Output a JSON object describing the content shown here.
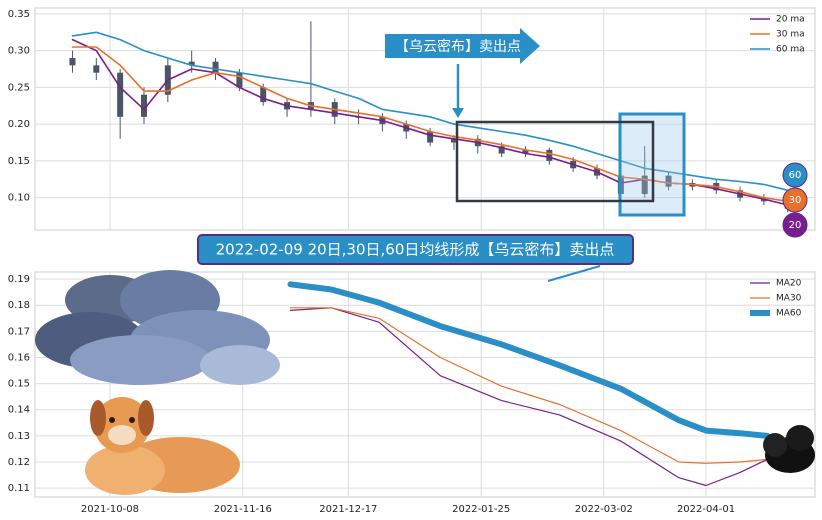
{
  "chart_data": [
    {
      "type": "candlestick",
      "x": [
        "2021-09-27",
        "2021-10-04",
        "2021-10-11",
        "2021-10-18",
        "2021-10-25",
        "2021-11-01",
        "2021-11-08",
        "2021-11-15",
        "2021-11-22",
        "2021-11-29",
        "2021-12-06",
        "2021-12-13",
        "2021-12-20",
        "2021-12-27",
        "2022-01-03",
        "2022-01-10",
        "2022-01-17",
        "2022-01-24",
        "2022-01-31",
        "2022-02-07",
        "2022-02-14",
        "2022-02-21",
        "2022-02-28",
        "2022-03-07",
        "2022-03-14",
        "2022-03-21",
        "2022-03-28",
        "2022-04-04",
        "2022-04-11",
        "2022-04-18",
        "2022-04-25"
      ],
      "open": [
        0.29,
        0.28,
        0.27,
        0.21,
        0.24,
        0.28,
        0.285,
        0.27,
        0.25,
        0.23,
        0.22,
        0.23,
        0.21,
        0.21,
        0.2,
        0.19,
        0.175,
        0.18,
        0.17,
        0.16,
        0.165,
        0.15,
        0.14,
        0.13,
        0.105,
        0.13,
        0.115,
        0.12,
        0.11,
        0.1,
        0.095
      ],
      "high": [
        0.3,
        0.29,
        0.275,
        0.25,
        0.29,
        0.3,
        0.29,
        0.275,
        0.255,
        0.235,
        0.34,
        0.235,
        0.22,
        0.215,
        0.205,
        0.195,
        0.185,
        0.185,
        0.175,
        0.17,
        0.168,
        0.155,
        0.145,
        0.135,
        0.17,
        0.135,
        0.125,
        0.125,
        0.115,
        0.105,
        0.1
      ],
      "low": [
        0.27,
        0.26,
        0.18,
        0.2,
        0.23,
        0.27,
        0.26,
        0.245,
        0.225,
        0.21,
        0.21,
        0.2,
        0.2,
        0.19,
        0.18,
        0.17,
        0.165,
        0.16,
        0.155,
        0.155,
        0.145,
        0.135,
        0.125,
        0.1,
        0.1,
        0.11,
        0.11,
        0.105,
        0.095,
        0.09,
        0.08
      ],
      "close": [
        0.28,
        0.27,
        0.21,
        0.24,
        0.28,
        0.285,
        0.27,
        0.25,
        0.23,
        0.22,
        0.23,
        0.21,
        0.21,
        0.2,
        0.19,
        0.175,
        0.18,
        0.17,
        0.16,
        0.165,
        0.15,
        0.14,
        0.13,
        0.105,
        0.13,
        0.115,
        0.12,
        0.11,
        0.1,
        0.095,
        0.085
      ],
      "candle_color": "#4a5566",
      "series": [
        {
          "name": "20 ma",
          "color": "#7a1e8e",
          "values": [
            0.315,
            0.3,
            0.25,
            0.22,
            0.26,
            0.275,
            0.27,
            0.25,
            0.235,
            0.225,
            0.22,
            0.215,
            0.21,
            0.205,
            0.195,
            0.185,
            0.18,
            0.175,
            0.168,
            0.16,
            0.155,
            0.145,
            0.135,
            0.12,
            0.125,
            0.12,
            0.118,
            0.112,
            0.105,
            0.098,
            0.09
          ]
        },
        {
          "name": "30 ma",
          "color": "#e8702a",
          "values": [
            0.305,
            0.305,
            0.28,
            0.245,
            0.245,
            0.26,
            0.27,
            0.265,
            0.25,
            0.235,
            0.225,
            0.22,
            0.215,
            0.21,
            0.2,
            0.19,
            0.183,
            0.178,
            0.172,
            0.165,
            0.16,
            0.152,
            0.14,
            0.128,
            0.125,
            0.12,
            0.118,
            0.115,
            0.108,
            0.1,
            0.095
          ]
        },
        {
          "name": "60 ma",
          "color": "#2a8fc7",
          "values": [
            0.32,
            0.325,
            0.315,
            0.3,
            0.29,
            0.28,
            0.275,
            0.27,
            0.265,
            0.26,
            0.255,
            0.245,
            0.235,
            0.22,
            0.215,
            0.21,
            0.2,
            0.195,
            0.19,
            0.185,
            0.178,
            0.17,
            0.16,
            0.15,
            0.14,
            0.135,
            0.13,
            0.125,
            0.122,
            0.118,
            0.11
          ]
        }
      ],
      "xlim": [
        "2021-09-16",
        "2022-05-03"
      ],
      "xticks": [
        "2021-10-08",
        "2021-11-16",
        "2021-12-17",
        "2022-01-25",
        "2022-03-02",
        "2022-04-01"
      ],
      "ylim": [
        0.056,
        0.358
      ],
      "yticks": [
        {
          "value": 0.1,
          "label": "0.10"
        },
        0.15,
        {
          "value": 0.2,
          "label": "0.20"
        },
        0.25,
        {
          "value": 0.3,
          "label": "0.30"
        },
        0.35
      ],
      "grid": true,
      "legend": "upper right",
      "annotation": "【乌云密布】卖出点",
      "badges": [
        "60",
        "30",
        "20"
      ]
    },
    {
      "type": "line",
      "x": [
        "2021-11-30",
        "2021-12-12",
        "2021-12-26",
        "2022-01-13",
        "2022-01-31",
        "2022-02-17",
        "2022-03-07",
        "2022-03-24",
        "2022-04-01",
        "2022-04-11",
        "2022-04-19"
      ],
      "series": [
        {
          "name": "MA20",
          "color": "#7a1e8e",
          "width": 1.2,
          "values": [
            0.178,
            0.179,
            0.1735,
            0.153,
            0.1435,
            0.138,
            0.128,
            0.114,
            0.111,
            0.116,
            0.121
          ]
        },
        {
          "name": "MA30",
          "color": "#e8702a",
          "width": 1.2,
          "values": [
            0.179,
            0.179,
            0.175,
            0.16,
            0.149,
            0.142,
            0.132,
            0.12,
            0.1195,
            0.12,
            0.121
          ]
        },
        {
          "name": "MA60",
          "color": "#2a8fc7",
          "width": 6,
          "values": [
            0.188,
            0.186,
            0.181,
            0.172,
            0.165,
            0.157,
            0.148,
            0.136,
            0.132,
            0.131,
            0.13
          ]
        }
      ],
      "xlim": [
        "2021-09-16",
        "2022-05-03"
      ],
      "xticks": [
        "2021-10-08",
        "2021-11-16",
        "2021-12-17",
        "2022-01-25",
        "2022-03-02",
        "2022-04-01"
      ],
      "ylim": [
        0.1066,
        0.1927
      ],
      "yticks": [
        0.11,
        0.12,
        0.13,
        0.14,
        0.15,
        0.16,
        0.17,
        0.18,
        0.19
      ],
      "grid": true,
      "legend": "upper right",
      "annotation": "2022-02-09 20日,30日,60日均线形成【乌云密布】卖出点"
    }
  ]
}
